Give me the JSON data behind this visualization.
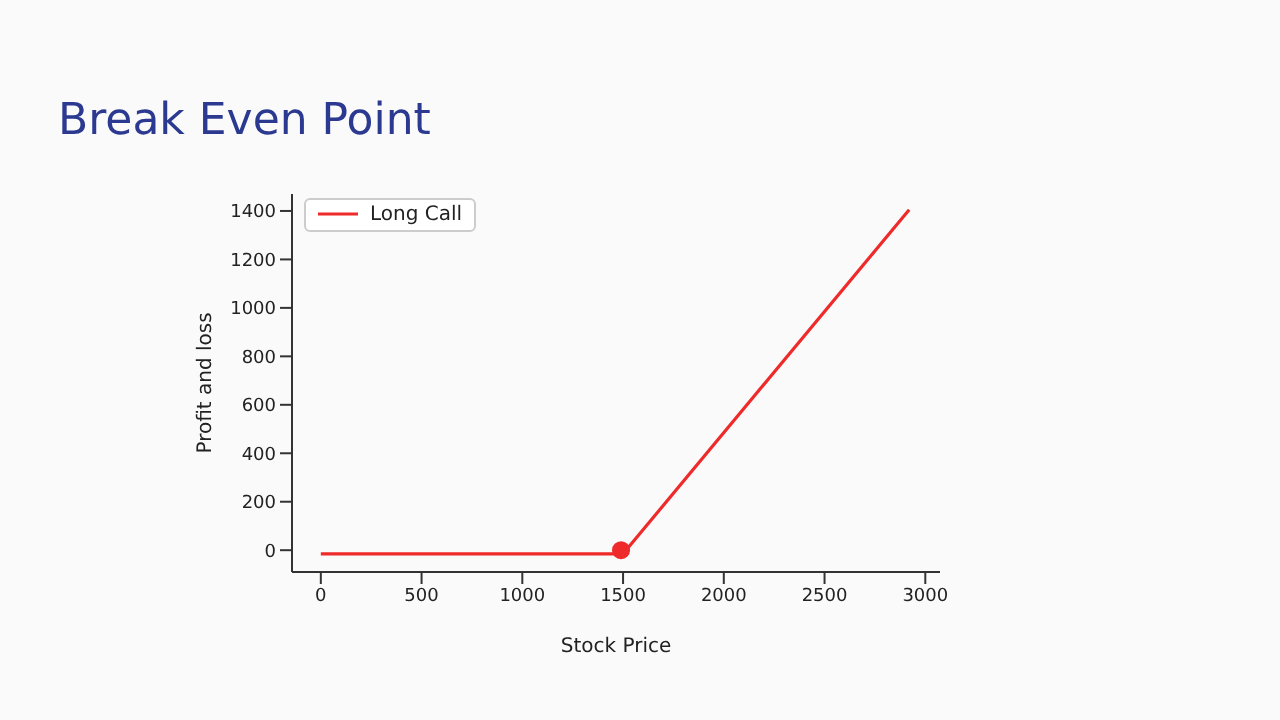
{
  "chart_data": {
    "type": "line",
    "title": "Break Even Point",
    "xlabel": "Stock Price",
    "ylabel": "Profit and loss",
    "series": [
      {
        "name": "Long Call",
        "color": "#ee2a2a",
        "x": [
          0,
          1500,
          2920
        ],
        "values": [
          -15,
          -15,
          1405
        ],
        "marker": "none"
      },
      {
        "type": "scatter",
        "color": "#ee2a2a",
        "x": [
          1490
        ],
        "values": [
          0
        ],
        "marker": "circle"
      }
    ],
    "xlim": [
      -143,
      3073
    ],
    "xticks": [
      0,
      500,
      1000,
      1500,
      2000,
      2500,
      3000
    ],
    "ylim": [
      -90,
      1470
    ],
    "yticks": [
      0,
      200,
      400,
      600,
      800,
      1000,
      1200,
      1400
    ],
    "grid": false,
    "legend": "top left"
  }
}
